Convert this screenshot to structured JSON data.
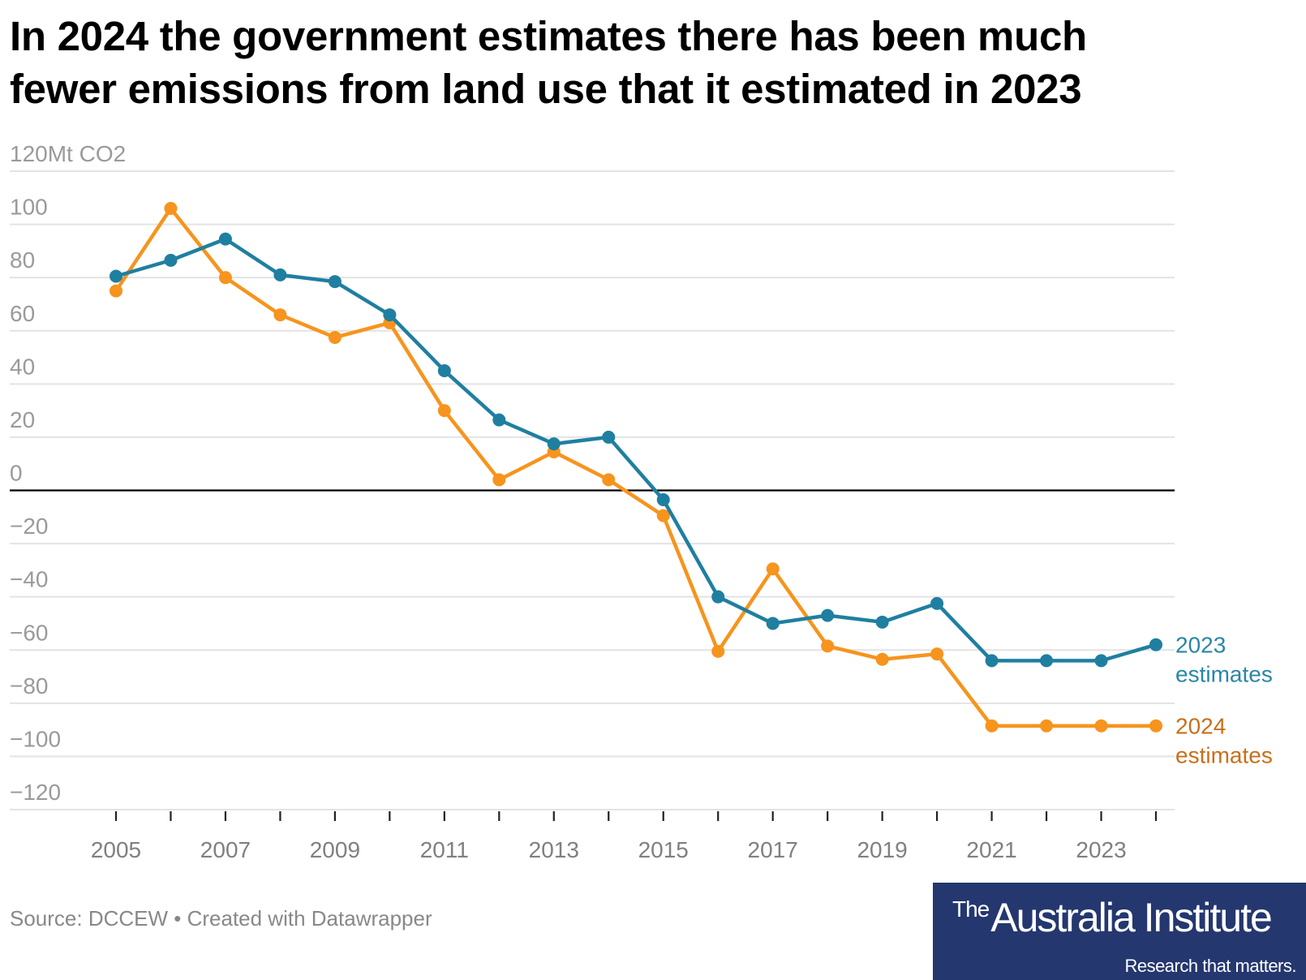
{
  "chart_data": {
    "type": "line",
    "title": "In 2024 the government estimates there has been much fewer emissions from land use that it estimated in 2023",
    "title_lines": [
      "In 2024 the government estimates there has been much",
      "fewer emissions from land use that it estimated in 2023"
    ],
    "ylabel": "Mt CO2",
    "y_unit_label": "120Mt CO2",
    "xlabel": "",
    "ylim": [
      -120,
      120
    ],
    "yticks": [
      120,
      100,
      80,
      60,
      40,
      20,
      0,
      -20,
      -40,
      -60,
      -80,
      -100,
      -120
    ],
    "ytick_labels": [
      "120Mt CO2",
      "100",
      "80",
      "60",
      "40",
      "20",
      "0",
      "−20",
      "−40",
      "−60",
      "−80",
      "−100",
      "−120"
    ],
    "x": [
      2005,
      2006,
      2007,
      2008,
      2009,
      2010,
      2011,
      2012,
      2013,
      2014,
      2015,
      2016,
      2017,
      2018,
      2019,
      2020,
      2021,
      2022,
      2023,
      2024
    ],
    "xtick_labels": [
      "2005",
      "2007",
      "2009",
      "2011",
      "2013",
      "2015",
      "2017",
      "2019",
      "2021",
      "2023"
    ],
    "xlim": [
      2005,
      2024
    ],
    "grid": true,
    "legend": "direct-labels-right",
    "series": [
      {
        "name": "2023 estimates",
        "label_lines": [
          "2023",
          "estimates"
        ],
        "color": "#1f7fa0",
        "label_color": "#2a86a6",
        "values": [
          80.5,
          86.5,
          94.5,
          81,
          78.5,
          66,
          45,
          26.5,
          17.5,
          20,
          -3.5,
          -40,
          -50,
          -47,
          -49.5,
          -42.5,
          -64,
          -64,
          -64,
          -58
        ]
      },
      {
        "name": "2024 estimates",
        "label_lines": [
          "2024",
          "estimates"
        ],
        "color": "#f7941d",
        "label_color": "#c86f1a",
        "values": [
          75,
          106,
          80,
          66,
          57.5,
          63,
          30,
          4,
          14.5,
          4,
          -9.5,
          -60.5,
          -29.5,
          -58.5,
          -63.5,
          -61.5,
          -88.5,
          -88.5,
          -88.5,
          -88.5
        ]
      }
    ]
  },
  "footer": {
    "source": "Source: DCCEW • Created with Datawrapper"
  },
  "logo": {
    "the": "The",
    "name": "Australia Institute",
    "tagline": "Research that matters."
  },
  "colors": {
    "logo_background": "#24376f",
    "gridline": "#e3e3e3",
    "zero_line": "#000000",
    "tick_label": "#9a9a9a",
    "x_tick_label": "#808080"
  }
}
